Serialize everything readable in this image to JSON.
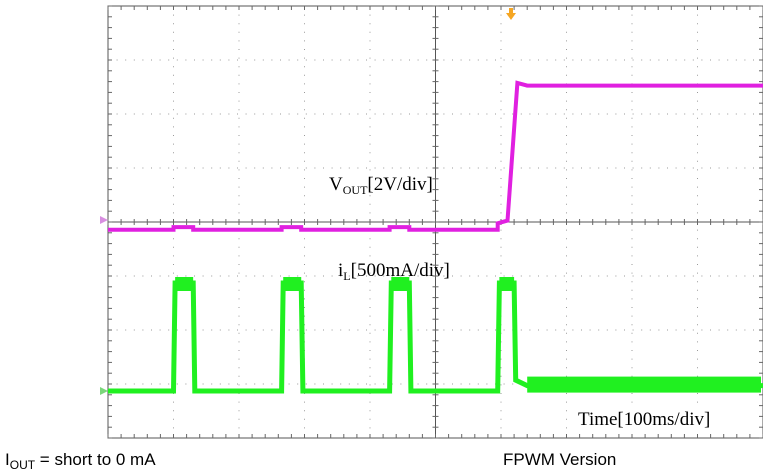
{
  "chart_data": {
    "type": "line",
    "title": "",
    "grid": true,
    "divisions": {
      "x": 10,
      "y": 8
    },
    "series": [
      {
        "name": "VOUT",
        "label_main": "V",
        "label_sub": "OUT",
        "label_scale": "[2V/div]",
        "color": "#e020e0",
        "units_per_div": "2V",
        "points": [
          [
            0,
            -0.07
          ],
          [
            2,
            -0.07
          ],
          [
            2,
            -0.02
          ],
          [
            2.6,
            -0.02
          ],
          [
            2.6,
            -0.07
          ],
          [
            5.3,
            -0.07
          ],
          [
            5.3,
            -0.02
          ],
          [
            5.9,
            -0.02
          ],
          [
            5.9,
            -0.07
          ],
          [
            8.6,
            -0.07
          ],
          [
            8.6,
            -0.02
          ],
          [
            9.2,
            -0.02
          ],
          [
            9.2,
            -0.07
          ],
          [
            11.9,
            -0.07
          ],
          [
            11.9,
            0.05
          ],
          [
            12.2,
            0.1
          ],
          [
            12.5,
            2.65
          ],
          [
            12.8,
            2.6
          ],
          [
            20,
            2.6
          ]
        ]
      },
      {
        "name": "iL",
        "label_main": "i",
        "label_sub": "L",
        "label_scale": "[500mA/div]",
        "color": "#20f020",
        "units_per_div": "500mA",
        "points": [
          [
            0,
            0
          ],
          [
            2,
            0
          ],
          [
            2.05,
            2.0
          ],
          [
            2.6,
            2.0
          ],
          [
            2.65,
            0
          ],
          [
            5.3,
            0
          ],
          [
            5.35,
            2.0
          ],
          [
            5.9,
            2.0
          ],
          [
            5.95,
            0
          ],
          [
            8.6,
            0
          ],
          [
            8.65,
            2.0
          ],
          [
            9.2,
            2.0
          ],
          [
            9.25,
            0
          ],
          [
            11.9,
            0
          ],
          [
            11.95,
            2.0
          ],
          [
            12.4,
            2.0
          ],
          [
            12.45,
            0.2
          ],
          [
            12.8,
            0.1
          ],
          [
            20,
            0.1
          ]
        ]
      }
    ],
    "time_label": "Time[100ms/div]",
    "x_units_per_div": "100ms",
    "trigger_marker": "T"
  },
  "captions": {
    "left_main": "I",
    "left_sub": "OUT",
    "left_rest": " = short to 0 mA",
    "right": "FPWM Version"
  }
}
